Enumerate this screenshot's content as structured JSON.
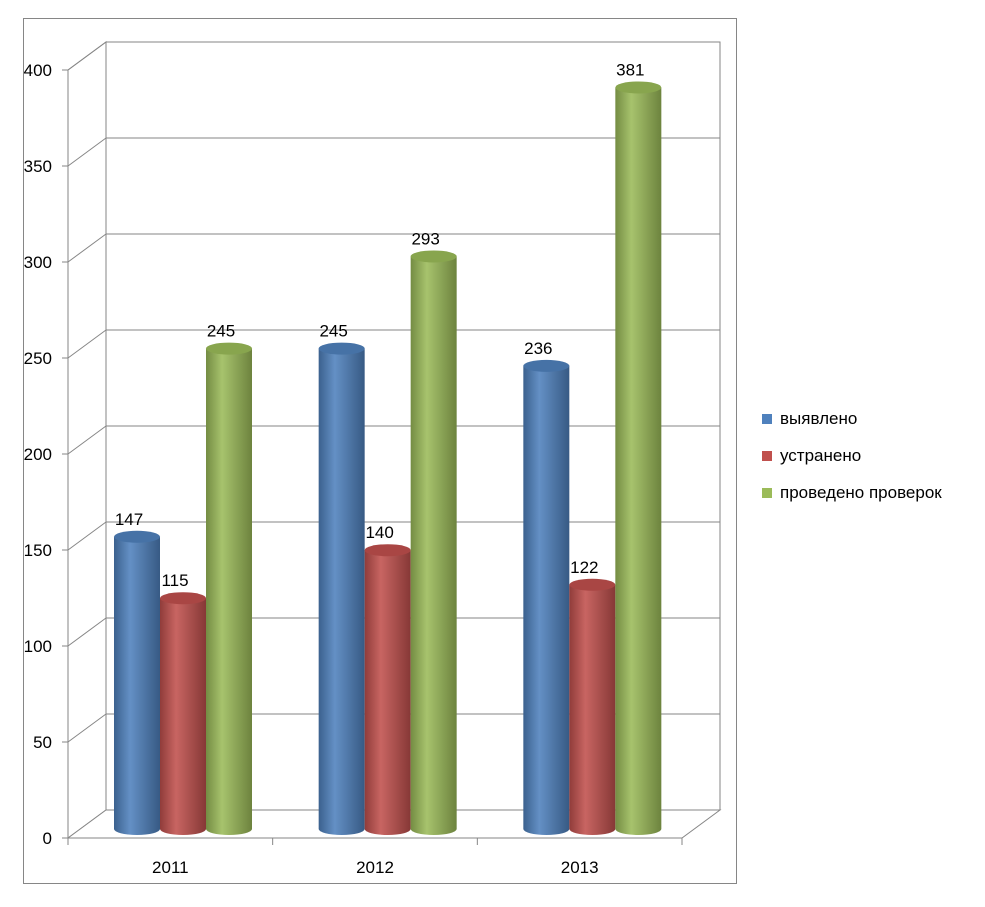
{
  "chart_data": {
    "type": "bar",
    "categories": [
      "2011",
      "2012",
      "2013"
    ],
    "series": [
      {
        "name": "выявлено",
        "values": [
          147,
          245,
          236
        ],
        "color": "#4F81BD"
      },
      {
        "name": "устранено",
        "values": [
          115,
          140,
          122
        ],
        "color": "#C0504D"
      },
      {
        "name": "проведено проверок",
        "values": [
          245,
          293,
          381
        ],
        "color": "#9BBB59"
      }
    ],
    "ylim": [
      0,
      400
    ],
    "yticks": [
      0,
      50,
      100,
      150,
      200,
      250,
      300,
      350,
      400
    ],
    "grid": true,
    "legend_position": "right",
    "data_labels": true,
    "style": "3d-cylinder"
  }
}
